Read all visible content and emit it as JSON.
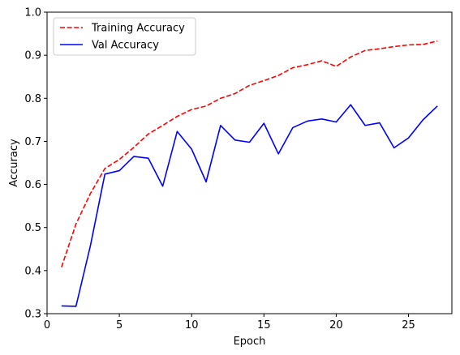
{
  "chart_data": {
    "type": "line",
    "title": "",
    "xlabel": "Epoch",
    "ylabel": "Accuracy",
    "xlim": [
      0,
      28
    ],
    "ylim": [
      0.3,
      1.0
    ],
    "xticks": [
      0,
      5,
      10,
      15,
      20,
      25
    ],
    "yticks": [
      0.3,
      0.4,
      0.5,
      0.6,
      0.7,
      0.8,
      0.9,
      1.0
    ],
    "xtick_labels": [
      "0",
      "5",
      "10",
      "15",
      "20",
      "25"
    ],
    "ytick_labels": [
      "0.3",
      "0.4",
      "0.5",
      "0.6",
      "0.7",
      "0.8",
      "0.9",
      "1.0"
    ],
    "grid": false,
    "legend_position": "top-left",
    "x": [
      1,
      2,
      3,
      4,
      5,
      6,
      7,
      8,
      9,
      10,
      11,
      12,
      13,
      14,
      15,
      16,
      17,
      18,
      19,
      20,
      21,
      22,
      23,
      24,
      25,
      26,
      27
    ],
    "series": [
      {
        "name": "Training Accuracy",
        "color": "#ff0000",
        "style": "dashed",
        "values": [
          0.408,
          0.508,
          0.579,
          0.637,
          0.658,
          0.686,
          0.717,
          0.737,
          0.758,
          0.774,
          0.782,
          0.8,
          0.811,
          0.83,
          0.841,
          0.853,
          0.871,
          0.878,
          0.887,
          0.874,
          0.896,
          0.911,
          0.915,
          0.92,
          0.924,
          0.925,
          0.933
        ]
      },
      {
        "name": "Val Accuracy",
        "color": "#0000ff",
        "style": "solid",
        "values": [
          0.318,
          0.317,
          0.458,
          0.624,
          0.632,
          0.665,
          0.661,
          0.596,
          0.723,
          0.682,
          0.606,
          0.737,
          0.703,
          0.698,
          0.742,
          0.671,
          0.732,
          0.747,
          0.752,
          0.745,
          0.785,
          0.737,
          0.743,
          0.685,
          0.708,
          0.75,
          0.782
        ]
      }
    ]
  }
}
